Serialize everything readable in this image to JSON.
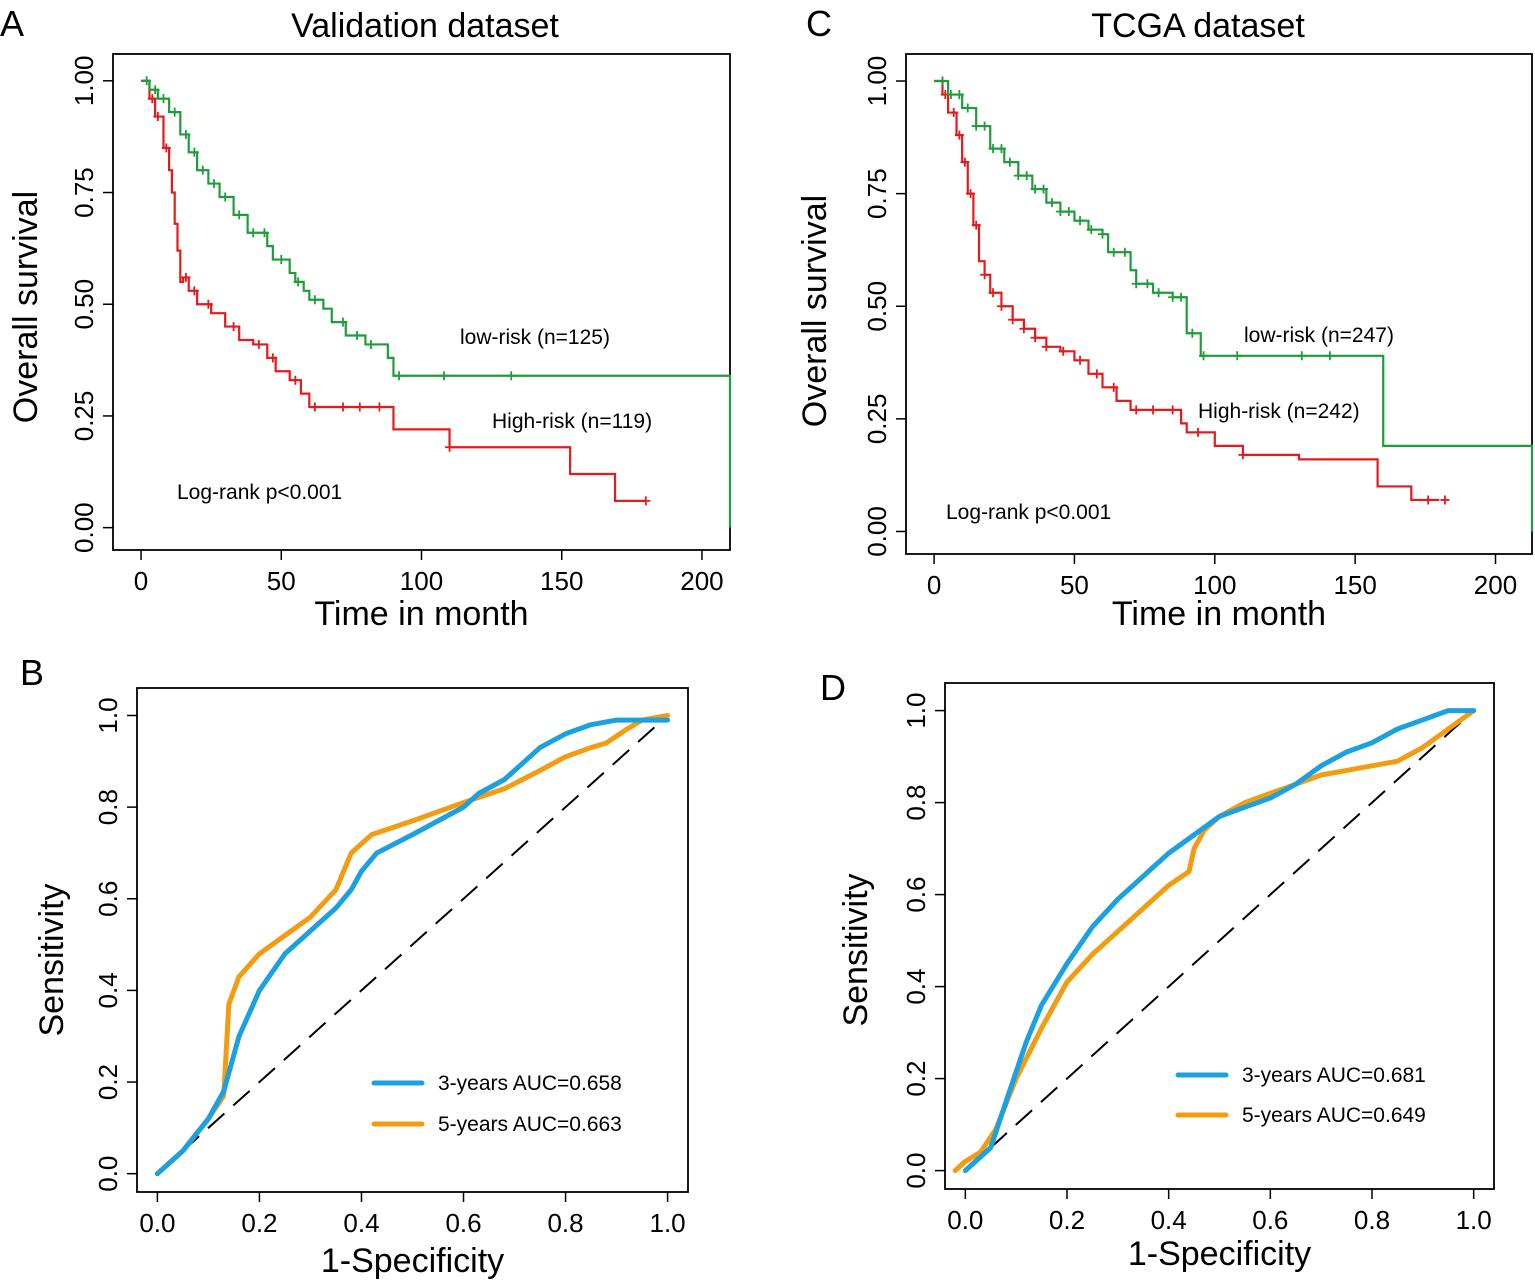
{
  "colors": {
    "high_risk": "#e41a1c",
    "low_risk": "#1f9c3b",
    "auc3": "#1ba1e2",
    "auc5": "#f39c12",
    "frame": "#000000"
  },
  "chart_data": [
    {
      "panel": "A",
      "type": "line",
      "subtype": "kaplan-meier",
      "title": "Validation dataset",
      "xlabel": "Time in month",
      "ylabel": "Overall survival",
      "xlim": [
        -10,
        210
      ],
      "ylim": [
        -0.05,
        1.06
      ],
      "xticks": [
        0,
        50,
        100,
        150,
        200
      ],
      "yticks": [
        "0.00",
        "0.25",
        "0.50",
        "0.75",
        "1.00"
      ],
      "annotation": "Log-rank p<0.001",
      "series": [
        {
          "name": "low-risk (n=125)",
          "color_key": "low_risk",
          "x": [
            0,
            3,
            6,
            10,
            14,
            17,
            20,
            24,
            28,
            33,
            38,
            45,
            47,
            53,
            55,
            58,
            60,
            65,
            68,
            73,
            78,
            80,
            85,
            88,
            90,
            110,
            130,
            160,
            190,
            205,
            210,
            210
          ],
          "y": [
            1.0,
            0.98,
            0.96,
            0.93,
            0.88,
            0.84,
            0.8,
            0.77,
            0.74,
            0.7,
            0.66,
            0.63,
            0.6,
            0.57,
            0.55,
            0.53,
            0.51,
            0.49,
            0.46,
            0.43,
            0.43,
            0.41,
            0.41,
            0.38,
            0.34,
            0.34,
            0.34,
            0.34,
            0.34,
            0.34,
            0.34,
            0.0
          ],
          "censor_x": [
            2,
            5,
            8,
            12,
            16,
            19,
            22,
            26,
            30,
            35,
            40,
            44,
            50,
            56,
            62,
            72,
            77,
            82,
            92,
            108,
            132
          ]
        },
        {
          "name": "High-risk (n=119)",
          "color_key": "high_risk",
          "x": [
            0,
            3,
            5,
            8,
            10,
            11,
            12,
            13,
            14,
            15,
            17,
            20,
            25,
            30,
            35,
            40,
            45,
            48,
            53,
            57,
            60,
            65,
            70,
            80,
            90,
            108,
            110,
            140,
            153,
            169,
            180
          ],
          "y": [
            1.0,
            0.96,
            0.92,
            0.85,
            0.8,
            0.75,
            0.68,
            0.62,
            0.55,
            0.56,
            0.53,
            0.5,
            0.48,
            0.45,
            0.42,
            0.41,
            0.38,
            0.35,
            0.33,
            0.3,
            0.27,
            0.27,
            0.27,
            0.27,
            0.22,
            0.22,
            0.18,
            0.18,
            0.12,
            0.06,
            0.06
          ],
          "censor_x": [
            4,
            6,
            9,
            16,
            19,
            24,
            33,
            42,
            47,
            55,
            62,
            72,
            78,
            85,
            110,
            180
          ]
        }
      ]
    },
    {
      "panel": "C",
      "type": "line",
      "subtype": "kaplan-meier",
      "title": "TCGA dataset",
      "xlabel": "Time in month",
      "ylabel": "Overall survival",
      "xlim": [
        -10,
        213
      ],
      "ylim": [
        -0.05,
        1.06
      ],
      "xticks": [
        0,
        50,
        100,
        150,
        200
      ],
      "yticks": [
        "0.00",
        "0.25",
        "0.50",
        "0.75",
        "1.00"
      ],
      "annotation": "Log-rank p<0.001",
      "series": [
        {
          "name": "low-risk (n=247)",
          "color_key": "low_risk",
          "x": [
            0,
            5,
            10,
            15,
            20,
            25,
            30,
            35,
            40,
            45,
            50,
            55,
            60,
            62,
            67,
            70,
            72,
            78,
            85,
            89,
            90,
            95,
            100,
            120,
            140,
            160,
            160,
            190,
            213,
            213
          ],
          "y": [
            1.0,
            0.97,
            0.94,
            0.9,
            0.85,
            0.82,
            0.79,
            0.76,
            0.73,
            0.71,
            0.69,
            0.67,
            0.66,
            0.62,
            0.62,
            0.58,
            0.55,
            0.53,
            0.52,
            0.52,
            0.44,
            0.39,
            0.39,
            0.39,
            0.39,
            0.39,
            0.19,
            0.19,
            0.19,
            0.0
          ],
          "censor_x": [
            3,
            6,
            9,
            12,
            15,
            18,
            21,
            24,
            27,
            30,
            33,
            36,
            39,
            42,
            45,
            48,
            52,
            56,
            60,
            64,
            68,
            72,
            76,
            80,
            85,
            88,
            92,
            96,
            108,
            131,
            141
          ]
        },
        {
          "name": "High-risk (n=242)",
          "color_key": "high_risk",
          "x": [
            0,
            3,
            5,
            8,
            10,
            12,
            14,
            16,
            18,
            20,
            24,
            28,
            32,
            36,
            40,
            45,
            50,
            55,
            60,
            65,
            70,
            80,
            88,
            90,
            100,
            110,
            130,
            155,
            158,
            170,
            180
          ],
          "y": [
            1.0,
            0.97,
            0.93,
            0.88,
            0.82,
            0.75,
            0.68,
            0.6,
            0.57,
            0.53,
            0.5,
            0.47,
            0.45,
            0.43,
            0.41,
            0.4,
            0.38,
            0.35,
            0.32,
            0.29,
            0.27,
            0.27,
            0.24,
            0.22,
            0.19,
            0.17,
            0.16,
            0.16,
            0.1,
            0.07,
            0.07
          ],
          "censor_x": [
            4,
            7,
            9,
            11,
            13,
            15,
            18,
            21,
            24,
            28,
            32,
            36,
            40,
            46,
            52,
            58,
            64,
            72,
            78,
            85,
            94,
            110,
            176,
            182
          ]
        }
      ]
    },
    {
      "panel": "B",
      "type": "line",
      "subtype": "roc",
      "xlabel": "1-Specificity",
      "ylabel": "Sensitivity",
      "xlim": [
        -0.04,
        1.04
      ],
      "ylim": [
        -0.04,
        1.06
      ],
      "xticks": [
        "0.0",
        "0.2",
        "0.4",
        "0.6",
        "0.8",
        "1.0"
      ],
      "yticks": [
        "0.0",
        "0.2",
        "0.4",
        "0.6",
        "0.8",
        "1.0"
      ],
      "series": [
        {
          "name": "3-years AUC=0.658",
          "color_key": "auc3",
          "x": [
            0.0,
            0.05,
            0.1,
            0.13,
            0.16,
            0.2,
            0.25,
            0.3,
            0.35,
            0.38,
            0.4,
            0.43,
            0.5,
            0.6,
            0.63,
            0.68,
            0.72,
            0.75,
            0.8,
            0.85,
            0.9,
            0.95,
            1.0
          ],
          "y": [
            0.0,
            0.05,
            0.12,
            0.18,
            0.3,
            0.4,
            0.48,
            0.53,
            0.58,
            0.62,
            0.66,
            0.7,
            0.74,
            0.8,
            0.83,
            0.86,
            0.9,
            0.93,
            0.96,
            0.98,
            0.99,
            0.99,
            0.99
          ]
        },
        {
          "name": "5-years AUC=0.663",
          "color_key": "auc5",
          "x": [
            0.0,
            0.05,
            0.1,
            0.13,
            0.14,
            0.16,
            0.2,
            0.25,
            0.3,
            0.35,
            0.38,
            0.4,
            0.42,
            0.5,
            0.6,
            0.68,
            0.75,
            0.8,
            0.85,
            0.88,
            0.92,
            0.95,
            1.0
          ],
          "y": [
            0.0,
            0.05,
            0.12,
            0.17,
            0.37,
            0.43,
            0.48,
            0.52,
            0.56,
            0.62,
            0.7,
            0.72,
            0.74,
            0.77,
            0.81,
            0.84,
            0.88,
            0.91,
            0.93,
            0.94,
            0.97,
            0.99,
            1.0
          ]
        }
      ]
    },
    {
      "panel": "D",
      "type": "line",
      "subtype": "roc",
      "xlabel": "1-Specificity",
      "ylabel": "Sensitivity",
      "xlim": [
        -0.04,
        1.04
      ],
      "ylim": [
        -0.04,
        1.06
      ],
      "xticks": [
        "0.0",
        "0.2",
        "0.4",
        "0.6",
        "0.8",
        "1.0"
      ],
      "yticks": [
        "0.0",
        "0.2",
        "0.4",
        "0.6",
        "0.8",
        "1.0"
      ],
      "series": [
        {
          "name": "3-years AUC=0.681",
          "color_key": "auc3",
          "x": [
            0.0,
            0.05,
            0.08,
            0.12,
            0.15,
            0.2,
            0.25,
            0.3,
            0.35,
            0.4,
            0.45,
            0.5,
            0.55,
            0.6,
            0.65,
            0.7,
            0.75,
            0.8,
            0.85,
            0.9,
            0.95,
            1.0
          ],
          "y": [
            0.0,
            0.05,
            0.15,
            0.28,
            0.36,
            0.45,
            0.53,
            0.59,
            0.64,
            0.69,
            0.73,
            0.77,
            0.79,
            0.81,
            0.84,
            0.88,
            0.91,
            0.93,
            0.96,
            0.98,
            1.0,
            1.0
          ]
        },
        {
          "name": "5-years AUC=0.649",
          "color_key": "auc5",
          "x": [
            -0.02,
            0.0,
            0.03,
            0.06,
            0.1,
            0.15,
            0.2,
            0.25,
            0.3,
            0.35,
            0.4,
            0.44,
            0.45,
            0.47,
            0.5,
            0.55,
            0.6,
            0.65,
            0.7,
            0.75,
            0.8,
            0.85,
            0.9,
            0.95,
            1.0
          ],
          "y": [
            0.0,
            0.02,
            0.04,
            0.09,
            0.2,
            0.31,
            0.41,
            0.47,
            0.52,
            0.57,
            0.62,
            0.65,
            0.7,
            0.74,
            0.77,
            0.8,
            0.82,
            0.84,
            0.86,
            0.87,
            0.88,
            0.89,
            0.92,
            0.96,
            1.0
          ]
        }
      ]
    }
  ]
}
